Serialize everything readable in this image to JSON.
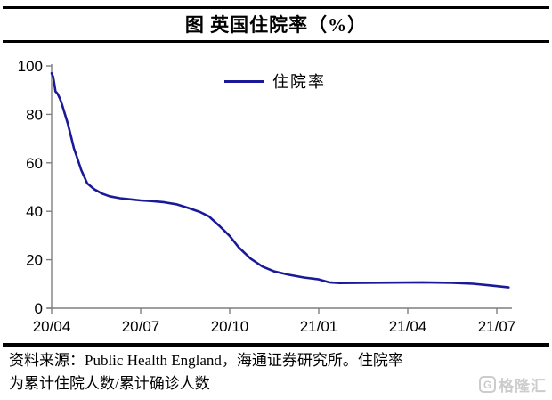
{
  "title": "图 英国住院率（%）",
  "legend": {
    "label": "住院率"
  },
  "source": {
    "line1": "资料来源：Public Health England，海通证券研究所。住院率",
    "line2": "为累计住院人数/累计确诊人数"
  },
  "watermark": {
    "g": "G",
    "text": "格隆汇"
  },
  "colors": {
    "line": "#1a1a99",
    "axis": "#7f7f7f",
    "text": "#000000",
    "rule": "#000000",
    "watermark": "#cccccc"
  },
  "chart_data": {
    "type": "line",
    "title": "图 英国住院率（%）",
    "xlabel": "",
    "ylabel": "",
    "ylim": [
      0,
      100
    ],
    "xlim": [
      0,
      15.5
    ],
    "x_unit": "months since 2020-04",
    "grid": false,
    "legend_position": "top-center-inside",
    "y_ticks": [
      0,
      20,
      40,
      60,
      80,
      100
    ],
    "x_ticks": [
      {
        "m": 0,
        "label": "20/04"
      },
      {
        "m": 3,
        "label": "20/07"
      },
      {
        "m": 6,
        "label": "20/10"
      },
      {
        "m": 9,
        "label": "21/01"
      },
      {
        "m": 12,
        "label": "21/04"
      },
      {
        "m": 15,
        "label": "21/07"
      }
    ],
    "series": [
      {
        "name": "住院率",
        "color": "#1a1a99",
        "points": [
          [
            0,
            97
          ],
          [
            0.05,
            95.5
          ],
          [
            0.1,
            92
          ],
          [
            0.13,
            89.5
          ],
          [
            0.2,
            88.5
          ],
          [
            0.28,
            86.5
          ],
          [
            0.35,
            84
          ],
          [
            0.45,
            80
          ],
          [
            0.55,
            76
          ],
          [
            0.65,
            71
          ],
          [
            0.75,
            66
          ],
          [
            0.85,
            62.5
          ],
          [
            1.0,
            57
          ],
          [
            1.2,
            51.5
          ],
          [
            1.45,
            49
          ],
          [
            1.7,
            47.3
          ],
          [
            1.95,
            46.2
          ],
          [
            2.3,
            45.4
          ],
          [
            2.7,
            44.9
          ],
          [
            3.0,
            44.5
          ],
          [
            3.4,
            44.2
          ],
          [
            3.8,
            43.7
          ],
          [
            4.2,
            42.9
          ],
          [
            4.6,
            41.4
          ],
          [
            5.0,
            39.7
          ],
          [
            5.3,
            37.9
          ],
          [
            5.65,
            34
          ],
          [
            6.0,
            29.8
          ],
          [
            6.3,
            25.2
          ],
          [
            6.7,
            20.5
          ],
          [
            7.1,
            17.2
          ],
          [
            7.5,
            15.2
          ],
          [
            8.0,
            13.8
          ],
          [
            8.5,
            12.7
          ],
          [
            9.0,
            11.9
          ],
          [
            9.35,
            10.7
          ],
          [
            9.7,
            10.4
          ],
          [
            10.5,
            10.5
          ],
          [
            11.5,
            10.6
          ],
          [
            12.5,
            10.7
          ],
          [
            13.5,
            10.5
          ],
          [
            14.2,
            10.1
          ],
          [
            14.8,
            9.4
          ],
          [
            15.4,
            8.6
          ]
        ]
      }
    ]
  }
}
